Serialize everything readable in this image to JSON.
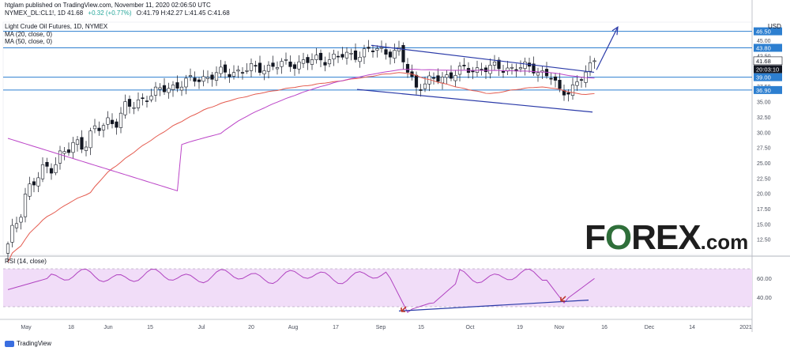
{
  "header": {
    "published": "htglam published on TradingView.com, November 11, 2020 02:06:50 UTC",
    "symbol_line": "NYMEX_DL:CL1!, 1D  41.68",
    "change": "+0.32 (+0.77%)",
    "ohlc": "O:41.79  H:42.27  L:41.45  C:41.68",
    "title": "Light Crude Oil Futures, 1D, NYMEX",
    "ma20": "MA (20, close, 0)",
    "ma50": "MA (50, close, 0)",
    "rsi": "RSI (14, close)",
    "currency": "USD"
  },
  "branding": {
    "logo_prefix": "F",
    "logo_o": "O",
    "logo_suffix": "REX",
    "logo_com": ".com",
    "tv": "TradingView"
  },
  "price_labels": [
    {
      "text": "46.50",
      "value": 46.5,
      "style": "blue"
    },
    {
      "text": "43.80",
      "value": 43.8,
      "style": "blue"
    },
    {
      "text": "41.68",
      "value": 41.68,
      "style": "white"
    },
    {
      "text": "20:03:10",
      "value": 40.3,
      "style": "dark"
    },
    {
      "text": "39.00",
      "value": 39.0,
      "style": "blue"
    },
    {
      "text": "36.90",
      "value": 36.9,
      "style": "blue"
    }
  ],
  "rsi_labels": [
    "60.00",
    "40.00"
  ],
  "colors": {
    "up": "#ffffff",
    "down": "#131722",
    "ma20": "#e45a4e",
    "ma50": "#bb44c7",
    "level": "#2d7fd0",
    "trend": "#2a3aa8",
    "rsi": "#b042c0",
    "rsi_band": "#f1ddf8",
    "accent": "#2962ff"
  },
  "chart_data": {
    "type": "candlestick",
    "title": "Light Crude Oil Futures, 1D, NYMEX",
    "y_ticks": [
      12.5,
      15,
      17.5,
      20,
      22.5,
      25,
      27.5,
      30,
      32.5,
      35,
      37.5,
      40,
      42.5,
      45
    ],
    "y_tick_labels": [
      "12.50",
      "15.00",
      "17.50",
      "20.00",
      "22.50",
      "25.00",
      "27.50",
      "30.00",
      "32.50",
      "35.00",
      "37.50",
      "40.00",
      "42.50",
      "45.00"
    ],
    "x_tick_labels": [
      "May",
      "18",
      "Jun",
      "15",
      "Jul",
      "20",
      "Aug",
      "17",
      "Sep",
      "15",
      "Oct",
      "19",
      "Nov",
      "16",
      "Dec",
      "14",
      "2021"
    ],
    "ylim": [
      10,
      48
    ],
    "horizontal_levels": [
      46.5,
      43.8,
      39.0,
      36.9
    ],
    "price": {
      "open": 41.79,
      "high": 42.27,
      "low": 41.45,
      "close": 41.68,
      "change": 0.32,
      "change_pct": 0.77
    },
    "series": [
      {
        "name": "MA (20, close, 0)",
        "color": "#e45a4e"
      },
      {
        "name": "MA (50, close, 0)",
        "color": "#bb44c7"
      }
    ],
    "rsi": {
      "name": "RSI (14, close)",
      "levels": [
        70,
        30
      ],
      "labels": [
        60,
        40
      ],
      "ylim": [
        20,
        80
      ]
    }
  }
}
